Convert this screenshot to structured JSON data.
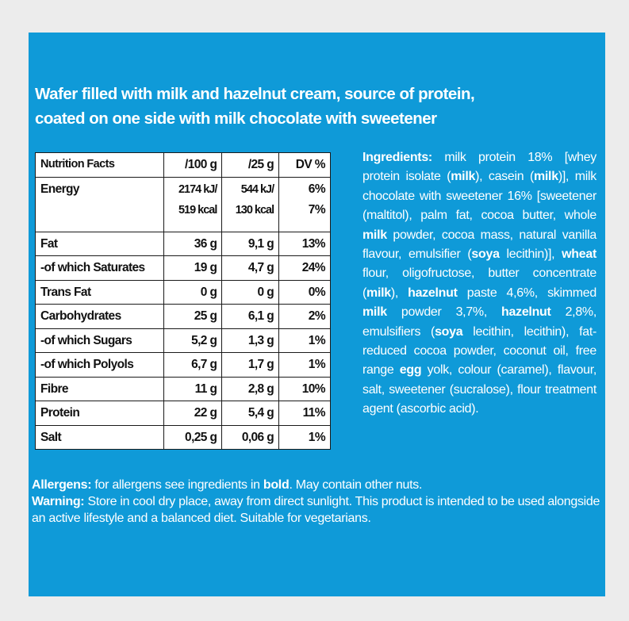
{
  "headline": {
    "line1": "Wafer filled with milk and hazelnut cream, source of protein,",
    "line2": "coated on one side with milk chocolate with sweetener"
  },
  "nutrition": {
    "headers": [
      "Nutrition Facts",
      "/100 g",
      "/25 g",
      "DV %"
    ],
    "energy": {
      "label": "Energy",
      "per100_kj": "2174 kJ/",
      "per100_kcal": "519 kcal",
      "per25_kj": "544 kJ/",
      "per25_kcal": "130 kcal",
      "dv_kj": "6%",
      "dv_kcal": "7%"
    },
    "rows": [
      {
        "label": "Fat",
        "per100": "36 g",
        "per25": "9,1 g",
        "dv": "13%"
      },
      {
        "label": "-of which Saturates",
        "per100": "19 g",
        "per25": "4,7 g",
        "dv": "24%"
      },
      {
        "label": "Trans Fat",
        "per100": "0 g",
        "per25": "0 g",
        "dv": "0%"
      },
      {
        "label": "Carbohydrates",
        "per100": "25 g",
        "per25": "6,1 g",
        "dv": "2%"
      },
      {
        "label": "-of which Sugars",
        "per100": "5,2 g",
        "per25": "1,3 g",
        "dv": "1%"
      },
      {
        "label": "-of which Polyols",
        "per100": "6,7 g",
        "per25": "1,7 g",
        "dv": "1%"
      },
      {
        "label": "Fibre",
        "per100": "11 g",
        "per25": "2,8 g",
        "dv": "10%"
      },
      {
        "label": "Protein",
        "per100": "22 g",
        "per25": "5,4 g",
        "dv": "11%"
      },
      {
        "label": "Salt",
        "per100": "0,25 g",
        "per25": "0,06 g",
        "dv": "1%"
      }
    ]
  },
  "ingredients": {
    "label": "Ingredients:",
    "parts": [
      {
        "t": " milk protein 18% [whey protein isolate (",
        "b": false
      },
      {
        "t": "milk",
        "b": true
      },
      {
        "t": "), casein (",
        "b": false
      },
      {
        "t": "milk",
        "b": true
      },
      {
        "t": ")], milk chocolate with sweetener 16% [sweetener (maltitol), palm fat, cocoa butter, whole ",
        "b": false
      },
      {
        "t": "milk",
        "b": true
      },
      {
        "t": " powder, cocoa mass, natural vanilla flavour, emulsifier (",
        "b": false
      },
      {
        "t": "soya",
        "b": true
      },
      {
        "t": " lecithin)], ",
        "b": false
      },
      {
        "t": "wheat",
        "b": true
      },
      {
        "t": " flour, oligofructose, butter concentrate (",
        "b": false
      },
      {
        "t": "milk",
        "b": true
      },
      {
        "t": "), ",
        "b": false
      },
      {
        "t": "hazelnut",
        "b": true
      },
      {
        "t": " paste 4,6%, skimmed ",
        "b": false
      },
      {
        "t": "milk",
        "b": true
      },
      {
        "t": " powder 3,7%, ",
        "b": false
      },
      {
        "t": "hazelnut",
        "b": true
      },
      {
        "t": " 2,8%, emulsifiers (",
        "b": false
      },
      {
        "t": "soya",
        "b": true
      },
      {
        "t": " lecithin, lecithin), fat-reduced cocoa powder, coconut oil, free range ",
        "b": false
      },
      {
        "t": "egg",
        "b": true
      },
      {
        "t": " yolk, colour (caramel), flavour, salt, sweetener (sucralose), flour treatment agent (ascorbic acid).",
        "b": false
      }
    ]
  },
  "allergens": {
    "label": "Allergens:",
    "text_before": " for allergens see ingredients in ",
    "bold_word": "bold",
    "text_after": ". May contain other nuts."
  },
  "warning": {
    "label": "Warning:",
    "text": " Store in cool dry place, away from direct sunlight. This product is intended to be used alongside an active lifestyle and a balanced diet. Suitable for vegetarians."
  },
  "colors": {
    "panel_blue": "#0f9ad8",
    "frame_gray": "#ececec",
    "table_bg": "#ffffff"
  }
}
